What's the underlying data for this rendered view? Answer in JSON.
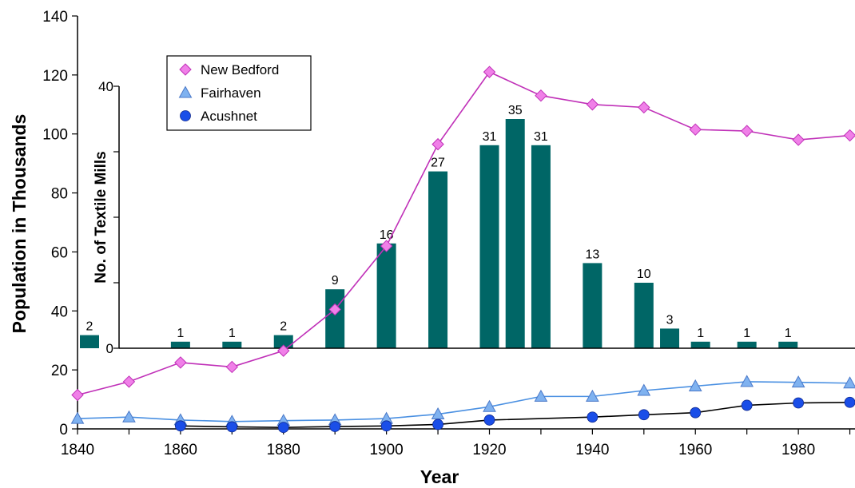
{
  "chart_data": [
    {
      "type": "line",
      "title": "",
      "xlabel": "Year",
      "ylabel": "Population in Thousands",
      "xlim": [
        1840,
        1990
      ],
      "ylim": [
        0,
        140
      ],
      "x_ticks": [
        "1840",
        "1860",
        "1880",
        "1900",
        "1920",
        "1940",
        "1960",
        "1980"
      ],
      "y_ticks": [
        "0",
        "20",
        "40",
        "60",
        "80",
        "100",
        "120",
        "140"
      ],
      "legend_position": "top-left",
      "series": [
        {
          "name": "New Bedford",
          "marker": "diamond",
          "color": "#f080e8",
          "line_color": "#c030b8",
          "x": [
            1840,
            1850,
            1860,
            1870,
            1880,
            1890,
            1900,
            1910,
            1920,
            1930,
            1940,
            1950,
            1960,
            1970,
            1980,
            1990
          ],
          "values": [
            11.5,
            16,
            22.5,
            21,
            26.5,
            40.5,
            62,
            96.5,
            121,
            113,
            110,
            109,
            101.5,
            101,
            98,
            99.5
          ]
        },
        {
          "name": "Fairhaven",
          "marker": "triangle",
          "color": "#7fb2f0",
          "line_color": "#4a90e2",
          "x": [
            1840,
            1850,
            1860,
            1870,
            1880,
            1890,
            1900,
            1910,
            1920,
            1930,
            1940,
            1950,
            1960,
            1970,
            1980,
            1990
          ],
          "values": [
            3.5,
            4,
            3,
            2.5,
            2.8,
            3,
            3.5,
            5,
            7.5,
            11,
            11,
            13,
            14.5,
            16,
            15.8,
            15.5
          ]
        },
        {
          "name": "Acushnet",
          "marker": "circle",
          "color": "#1a4ee8",
          "line_color": "#000000",
          "x": [
            1860,
            1870,
            1880,
            1890,
            1900,
            1910,
            1920,
            1940,
            1950,
            1960,
            1970,
            1980,
            1990
          ],
          "values": [
            1,
            0.7,
            0.5,
            0.8,
            1,
            1.5,
            3,
            4,
            4.8,
            5.5,
            8,
            8.8,
            9
          ]
        }
      ]
    },
    {
      "type": "bar",
      "title": "",
      "ylabel": "No. of Textile Mills",
      "ylim": [
        0,
        40
      ],
      "y_ticks": [
        "0",
        "40"
      ],
      "bar_color": "#006666",
      "x": [
        1840,
        1860,
        1870,
        1880,
        1890,
        1900,
        1910,
        1920,
        1925,
        1930,
        1940,
        1950,
        1955,
        1961,
        1970,
        1978
      ],
      "values": [
        2,
        1,
        1,
        2,
        9,
        16,
        27,
        31,
        35,
        31,
        13,
        10,
        3,
        1,
        1,
        1
      ]
    }
  ]
}
